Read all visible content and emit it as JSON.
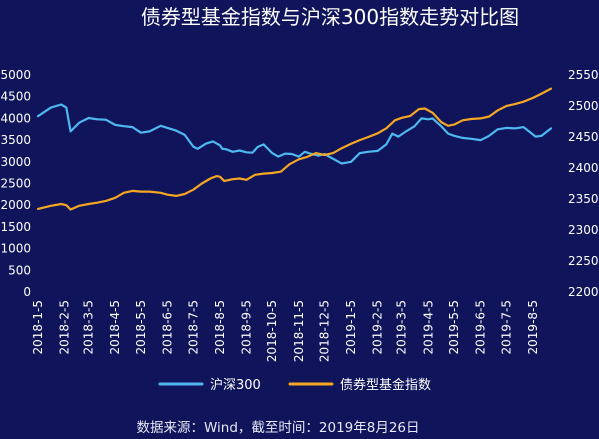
{
  "chart_data": {
    "type": "line",
    "title": "债券型基金指数与沪深300指数走势对比图",
    "x_ticks": [
      "2018-1-5",
      "2018-2-5",
      "2018-3-5",
      "2018-4-5",
      "2018-5-5",
      "2018-6-5",
      "2018-7-5",
      "2018-8-5",
      "2018-9-5",
      "2018-10-5",
      "2018-11-5",
      "2018-12-5",
      "2019-1-5",
      "2019-2-5",
      "2019-3-5",
      "2019-4-5",
      "2019-5-5",
      "2019-6-5",
      "2019-7-5",
      "2019-8-5"
    ],
    "y_left": {
      "min": 0,
      "max": 5000,
      "step": 500,
      "ticks": [
        "0",
        "500",
        "1000",
        "1500",
        "2000",
        "2500",
        "3000",
        "3500",
        "4000",
        "4500",
        "5000"
      ]
    },
    "y_right": {
      "min": 2200,
      "max": 2550,
      "step": 50,
      "ticks": [
        "2200",
        "2250",
        "2300",
        "2350",
        "2400",
        "2450",
        "2500",
        "2550"
      ]
    },
    "grid": false,
    "legend_position": "bottom",
    "series": [
      {
        "name": "沪深300",
        "axis": "left",
        "color": "#4fb8f0",
        "values": [
          [
            "2018-01-05",
            4050
          ],
          [
            "2018-01-20",
            4250
          ],
          [
            "2018-02-01",
            4320
          ],
          [
            "2018-02-07",
            4250
          ],
          [
            "2018-02-12",
            3700
          ],
          [
            "2018-02-22",
            3900
          ],
          [
            "2018-03-05",
            4010
          ],
          [
            "2018-03-15",
            3980
          ],
          [
            "2018-03-25",
            3970
          ],
          [
            "2018-04-05",
            3850
          ],
          [
            "2018-04-15",
            3820
          ],
          [
            "2018-04-25",
            3800
          ],
          [
            "2018-05-05",
            3670
          ],
          [
            "2018-05-15",
            3700
          ],
          [
            "2018-05-28",
            3830
          ],
          [
            "2018-06-05",
            3780
          ],
          [
            "2018-06-15",
            3720
          ],
          [
            "2018-06-25",
            3620
          ],
          [
            "2018-07-05",
            3350
          ],
          [
            "2018-07-10",
            3300
          ],
          [
            "2018-07-20",
            3420
          ],
          [
            "2018-07-28",
            3470
          ],
          [
            "2018-08-05",
            3380
          ],
          [
            "2018-08-08",
            3300
          ],
          [
            "2018-08-12",
            3290
          ],
          [
            "2018-08-20",
            3230
          ],
          [
            "2018-08-28",
            3260
          ],
          [
            "2018-09-05",
            3220
          ],
          [
            "2018-09-12",
            3210
          ],
          [
            "2018-09-18",
            3340
          ],
          [
            "2018-09-25",
            3400
          ],
          [
            "2018-10-05",
            3200
          ],
          [
            "2018-10-12",
            3120
          ],
          [
            "2018-10-20",
            3190
          ],
          [
            "2018-10-28",
            3180
          ],
          [
            "2018-11-05",
            3120
          ],
          [
            "2018-11-12",
            3230
          ],
          [
            "2018-11-20",
            3180
          ],
          [
            "2018-11-28",
            3140
          ],
          [
            "2018-12-05",
            3180
          ],
          [
            "2018-12-15",
            3070
          ],
          [
            "2018-12-25",
            2960
          ],
          [
            "2019-01-05",
            3000
          ],
          [
            "2019-01-15",
            3200
          ],
          [
            "2019-01-25",
            3230
          ],
          [
            "2019-02-05",
            3250
          ],
          [
            "2019-02-15",
            3400
          ],
          [
            "2019-02-22",
            3650
          ],
          [
            "2019-03-01",
            3580
          ],
          [
            "2019-03-10",
            3700
          ],
          [
            "2019-03-20",
            3820
          ],
          [
            "2019-03-28",
            4000
          ],
          [
            "2019-04-05",
            3980
          ],
          [
            "2019-04-10",
            4000
          ],
          [
            "2019-04-20",
            3820
          ],
          [
            "2019-04-28",
            3650
          ],
          [
            "2019-05-05",
            3600
          ],
          [
            "2019-05-15",
            3550
          ],
          [
            "2019-05-25",
            3530
          ],
          [
            "2019-06-05",
            3500
          ],
          [
            "2019-06-15",
            3600
          ],
          [
            "2019-06-25",
            3750
          ],
          [
            "2019-07-05",
            3780
          ],
          [
            "2019-07-15",
            3770
          ],
          [
            "2019-07-25",
            3800
          ],
          [
            "2019-08-01",
            3690
          ],
          [
            "2019-08-08",
            3580
          ],
          [
            "2019-08-15",
            3600
          ],
          [
            "2019-08-26",
            3770
          ]
        ]
      },
      {
        "name": "债券型基金指数",
        "axis": "right",
        "color": "#f5a623",
        "values": [
          [
            "2018-01-05",
            2334
          ],
          [
            "2018-01-20",
            2339
          ],
          [
            "2018-02-01",
            2342
          ],
          [
            "2018-02-07",
            2340
          ],
          [
            "2018-02-12",
            2333
          ],
          [
            "2018-02-22",
            2339
          ],
          [
            "2018-03-05",
            2342
          ],
          [
            "2018-03-15",
            2344
          ],
          [
            "2018-03-25",
            2347
          ],
          [
            "2018-04-05",
            2352
          ],
          [
            "2018-04-15",
            2360
          ],
          [
            "2018-04-25",
            2363
          ],
          [
            "2018-05-05",
            2362
          ],
          [
            "2018-05-15",
            2362
          ],
          [
            "2018-05-28",
            2360
          ],
          [
            "2018-06-05",
            2357
          ],
          [
            "2018-06-15",
            2355
          ],
          [
            "2018-06-25",
            2358
          ],
          [
            "2018-07-05",
            2365
          ],
          [
            "2018-07-15",
            2375
          ],
          [
            "2018-07-25",
            2383
          ],
          [
            "2018-08-01",
            2387
          ],
          [
            "2018-08-05",
            2386
          ],
          [
            "2018-08-10",
            2379
          ],
          [
            "2018-08-20",
            2382
          ],
          [
            "2018-08-28",
            2383
          ],
          [
            "2018-09-05",
            2381
          ],
          [
            "2018-09-15",
            2389
          ],
          [
            "2018-09-25",
            2391
          ],
          [
            "2018-10-05",
            2392
          ],
          [
            "2018-10-15",
            2394
          ],
          [
            "2018-10-25",
            2406
          ],
          [
            "2018-11-05",
            2414
          ],
          [
            "2018-11-15",
            2418
          ],
          [
            "2018-11-25",
            2424
          ],
          [
            "2018-12-05",
            2421
          ],
          [
            "2018-12-15",
            2424
          ],
          [
            "2018-12-25",
            2432
          ],
          [
            "2019-01-05",
            2439
          ],
          [
            "2019-01-15",
            2445
          ],
          [
            "2019-01-25",
            2450
          ],
          [
            "2019-02-05",
            2456
          ],
          [
            "2019-02-15",
            2464
          ],
          [
            "2019-02-25",
            2477
          ],
          [
            "2019-03-05",
            2481
          ],
          [
            "2019-03-15",
            2484
          ],
          [
            "2019-03-25",
            2495
          ],
          [
            "2019-04-01",
            2496
          ],
          [
            "2019-04-10",
            2489
          ],
          [
            "2019-04-20",
            2474
          ],
          [
            "2019-04-28",
            2468
          ],
          [
            "2019-05-05",
            2470
          ],
          [
            "2019-05-15",
            2477
          ],
          [
            "2019-05-25",
            2479
          ],
          [
            "2019-06-05",
            2480
          ],
          [
            "2019-06-15",
            2483
          ],
          [
            "2019-06-25",
            2493
          ],
          [
            "2019-07-05",
            2500
          ],
          [
            "2019-07-15",
            2503
          ],
          [
            "2019-07-25",
            2507
          ],
          [
            "2019-08-05",
            2513
          ],
          [
            "2019-08-15",
            2520
          ],
          [
            "2019-08-26",
            2528
          ]
        ]
      }
    ]
  },
  "source_note": "数据来源：Wind，截至时间：2019年8月26日"
}
